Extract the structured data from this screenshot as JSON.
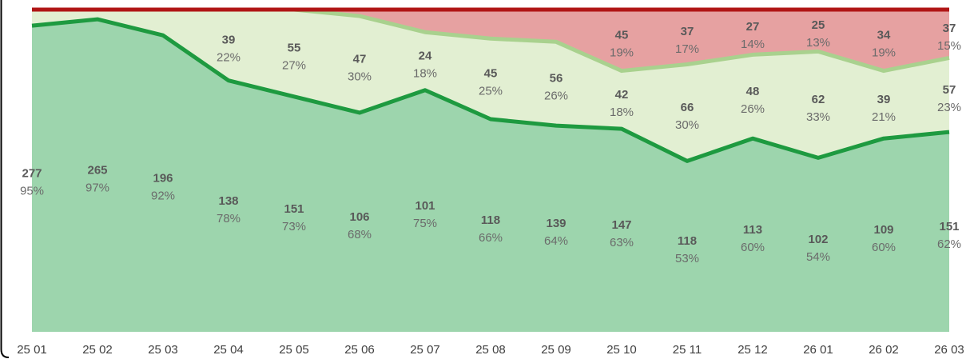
{
  "chart_data": {
    "type": "stacked_area_percent",
    "categories": [
      "25 01",
      "25 02",
      "25 03",
      "25 04",
      "25 05",
      "25 06",
      "25 07",
      "25 08",
      "25 09",
      "25 10",
      "25 11",
      "25 12",
      "26 01",
      "26 02",
      "26 03"
    ],
    "ylim": [
      0,
      100
    ],
    "series": [
      {
        "color": "#9dd5ad",
        "line_color": "#1e9a40",
        "values": [
          95,
          97,
          92,
          78,
          73,
          68,
          75,
          66,
          64,
          63,
          53,
          60,
          54,
          60,
          62
        ],
        "counts": [
          277,
          265,
          196,
          138,
          151,
          106,
          101,
          118,
          139,
          147,
          118,
          113,
          102,
          109,
          151
        ],
        "value_labels": [
          "95%",
          "97%",
          "92%",
          "78%",
          "73%",
          "68%",
          "75%",
          "66%",
          "64%",
          "63%",
          "53%",
          "60%",
          "54%",
          "60%",
          "62%"
        ]
      },
      {
        "color": "#e2efd2",
        "line_color": "#a9d18e",
        "values": [
          5,
          3,
          8,
          22,
          27,
          30,
          18,
          25,
          26,
          18,
          30,
          26,
          33,
          21,
          23
        ],
        "counts": [
          null,
          null,
          null,
          39,
          55,
          47,
          24,
          45,
          56,
          42,
          66,
          48,
          62,
          39,
          57
        ],
        "value_labels": [
          null,
          null,
          null,
          "22%",
          "27%",
          "30%",
          "18%",
          "25%",
          "26%",
          "18%",
          "30%",
          "26%",
          "33%",
          "21%",
          "23%"
        ]
      },
      {
        "color": "#e6a1a1",
        "line_color": "#b01515",
        "values": [
          0,
          0,
          0,
          0,
          0,
          2,
          7,
          9,
          10,
          19,
          17,
          14,
          13,
          19,
          15
        ],
        "counts": [
          null,
          null,
          null,
          null,
          null,
          null,
          null,
          null,
          null,
          45,
          37,
          27,
          25,
          34,
          37
        ],
        "value_labels": [
          null,
          null,
          null,
          null,
          null,
          null,
          null,
          null,
          null,
          "19%",
          "17%",
          "14%",
          "13%",
          "19%",
          "15%"
        ]
      }
    ]
  }
}
